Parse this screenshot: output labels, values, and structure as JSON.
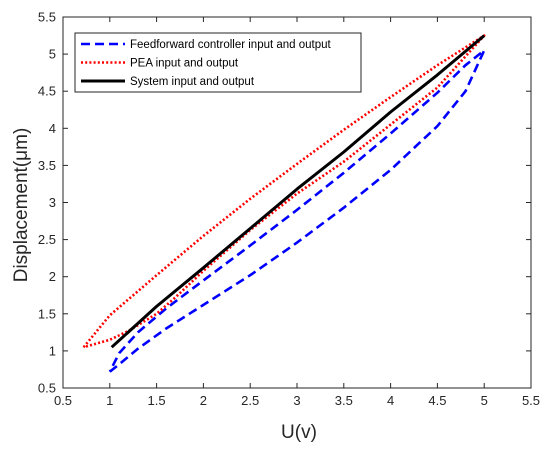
{
  "chart_data": {
    "type": "line",
    "title": "",
    "xlabel": "U(v)",
    "ylabel": "Displacement(μm)",
    "xlim": [
      0.5,
      5.5
    ],
    "ylim": [
      0.5,
      5.5
    ],
    "xticks": [
      "0.5",
      "1",
      "1.5",
      "2",
      "2.5",
      "3",
      "3.5",
      "4",
      "4.5",
      "5",
      "5.5"
    ],
    "yticks": [
      "0.5",
      "1",
      "1.5",
      "2",
      "2.5",
      "3",
      "3.5",
      "4",
      "4.5",
      "5",
      "5.5"
    ],
    "grid": false,
    "legend_position": "top-left",
    "series": [
      {
        "name": "Feedforward controller input and output",
        "color": "#0000ff",
        "style": "dashed",
        "x": [
          1.0,
          1.1,
          1.3,
          1.6,
          2.0,
          2.5,
          3.0,
          3.5,
          4.0,
          4.5,
          4.8,
          5.0,
          4.8,
          4.5,
          4.0,
          3.5,
          3.0,
          2.5,
          2.0,
          1.6,
          1.3,
          1.1,
          1.0
        ],
        "y": [
          0.72,
          0.82,
          1.03,
          1.3,
          1.62,
          2.02,
          2.46,
          2.93,
          3.44,
          4.03,
          4.5,
          5.05,
          4.85,
          4.48,
          3.93,
          3.4,
          2.9,
          2.42,
          1.95,
          1.57,
          1.25,
          0.97,
          0.72
        ]
      },
      {
        "name": "PEA input and output",
        "color": "#ff0000",
        "style": "dotted",
        "x": [
          0.72,
          1.0,
          1.5,
          2.0,
          2.5,
          3.0,
          3.5,
          4.0,
          4.5,
          5.0,
          4.5,
          4.0,
          3.5,
          3.0,
          2.5,
          2.0,
          1.7,
          1.5,
          1.2,
          1.0,
          0.72
        ],
        "y": [
          1.05,
          1.48,
          2.02,
          2.55,
          3.05,
          3.52,
          3.98,
          4.42,
          4.85,
          5.25,
          4.55,
          4.05,
          3.55,
          3.12,
          2.63,
          2.08,
          1.72,
          1.5,
          1.27,
          1.15,
          1.05
        ]
      },
      {
        "name": "System input and output",
        "color": "#000000",
        "style": "solid",
        "x": [
          1.02,
          1.5,
          2.0,
          2.5,
          3.0,
          3.5,
          4.0,
          4.5,
          5.0
        ],
        "y": [
          1.05,
          1.6,
          2.12,
          2.65,
          3.18,
          3.68,
          4.22,
          4.72,
          5.25
        ]
      }
    ]
  }
}
